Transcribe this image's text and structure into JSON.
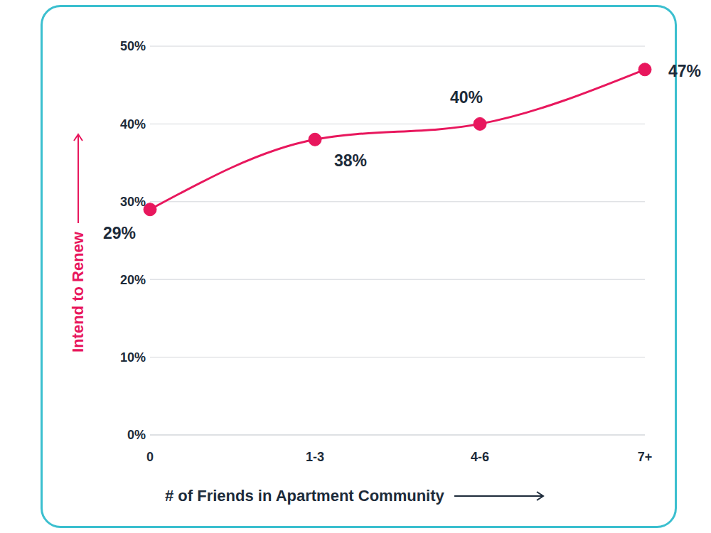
{
  "chart_data": {
    "type": "line",
    "x_label": "# of Friends in Apartment Community",
    "y_label": "Intend to Renew",
    "categories": [
      "0",
      "1-3",
      "4-6",
      "7+"
    ],
    "values": [
      29,
      38,
      40,
      47
    ],
    "value_labels": [
      "29%",
      "38%",
      "40%",
      "47%"
    ],
    "data_labels": true,
    "color": "#e8175d",
    "marker": "circle",
    "line_style": "solid",
    "ylim": [
      0,
      50
    ],
    "yticks": [
      {
        "value": 0,
        "label": "0%"
      },
      {
        "value": 10,
        "label": "10%"
      },
      {
        "value": 20,
        "label": "20%"
      },
      {
        "value": 30,
        "label": "30%"
      },
      {
        "value": 40,
        "label": "40%"
      },
      {
        "value": 50,
        "label": "50%"
      }
    ],
    "grid": true
  }
}
